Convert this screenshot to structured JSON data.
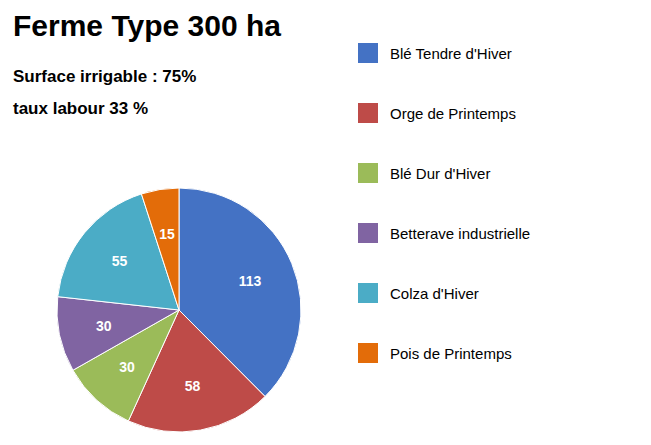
{
  "chart_data": {
    "type": "pie",
    "title": "Ferme Type 300 ha",
    "subtitle": [
      "Surface irrigable : 75%",
      "taux labour 33 %"
    ],
    "categories": [
      "Blé Tendre d'Hiver",
      "Orge de Printemps",
      "Blé Dur d'Hiver",
      "Betterave industrielle",
      "Colza d'Hiver",
      "Pois de Printemps"
    ],
    "values": [
      113,
      58,
      30,
      30,
      55,
      15
    ],
    "colors": [
      "#4472C4",
      "#BE4B48",
      "#9BBB59",
      "#8064A2",
      "#4BACC6",
      "#E36C09"
    ],
    "data_labels": true,
    "legend": "right"
  }
}
